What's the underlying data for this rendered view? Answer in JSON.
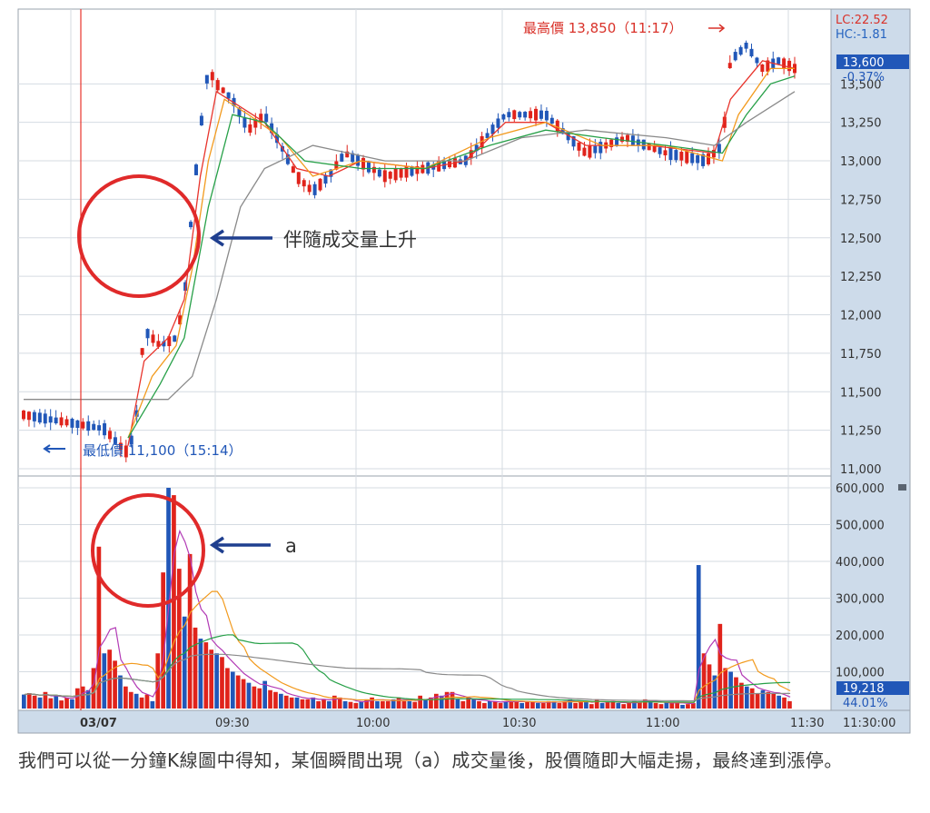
{
  "caption": "我們可以從一分鐘K線圖中得知，某個瞬間出現（a）成交量後，股價隨即大幅走揚，最終達到漲停。",
  "chart_data": [
    {
      "type": "candlestick",
      "date_label": "03/07",
      "x_ticks": [
        "09:30",
        "10:00",
        "10:30",
        "11:00",
        "11:30"
      ],
      "y_ticks": [
        "11,000",
        "11,250",
        "11,500",
        "11,750",
        "12,000",
        "12,250",
        "12,500",
        "12,750",
        "13,000",
        "13,250",
        "13,500"
      ],
      "ylim": [
        11000,
        13850
      ],
      "info": {
        "lc": "LC:22.52",
        "hc": "HC:-1.81",
        "price": "13,600",
        "change": "-0.37%"
      },
      "annotations": {
        "high": "最高價 13,850（11:17）",
        "low": "最低價 11,100（15:14）",
        "volume_rise": "伴隨成交量上升"
      },
      "series": [
        {
          "role": "price",
          "points": [
            [
              0,
              11350
            ],
            [
              10,
              11260
            ],
            [
              12,
              11150
            ],
            [
              13,
              11100
            ],
            [
              14,
              11300
            ],
            [
              15,
              11900
            ],
            [
              17,
              11800
            ],
            [
              19,
              11850
            ],
            [
              20,
              12100
            ],
            [
              21,
              12700
            ],
            [
              22,
              13200
            ],
            [
              23,
              13600
            ],
            [
              24,
              13500
            ],
            [
              25,
              13450
            ],
            [
              26,
              13400
            ],
            [
              28,
              13200
            ],
            [
              30,
              13300
            ],
            [
              32,
              13100
            ],
            [
              34,
              12900
            ],
            [
              36,
              12800
            ],
            [
              38,
              12900
            ],
            [
              40,
              13050
            ],
            [
              45,
              12900
            ],
            [
              50,
              12950
            ],
            [
              55,
              13000
            ],
            [
              60,
              13300
            ],
            [
              65,
              13300
            ],
            [
              70,
              13050
            ],
            [
              75,
              13150
            ],
            [
              80,
              13050
            ],
            [
              85,
              13000
            ],
            [
              87,
              13100
            ],
            [
              88,
              13650
            ],
            [
              90,
              13750
            ],
            [
              92,
              13600
            ],
            [
              94,
              13650
            ],
            [
              96,
              13600
            ]
          ]
        },
        {
          "role": "ma-short",
          "color": "#e8342c",
          "points": [
            [
              13,
              11150
            ],
            [
              15,
              11700
            ],
            [
              18,
              11850
            ],
            [
              20,
              12100
            ],
            [
              22,
              12900
            ],
            [
              24,
              13450
            ],
            [
              27,
              13350
            ],
            [
              30,
              13250
            ],
            [
              34,
              12950
            ],
            [
              38,
              12900
            ],
            [
              42,
              13000
            ],
            [
              50,
              12950
            ],
            [
              55,
              13000
            ],
            [
              60,
              13250
            ],
            [
              65,
              13250
            ],
            [
              70,
              13100
            ],
            [
              78,
              13100
            ],
            [
              86,
              13050
            ],
            [
              88,
              13400
            ],
            [
              92,
              13650
            ],
            [
              96,
              13600
            ]
          ]
        },
        {
          "role": "ma-mid",
          "color": "#f29a1d",
          "points": [
            [
              13,
              11200
            ],
            [
              16,
              11600
            ],
            [
              19,
              11800
            ],
            [
              21,
              12300
            ],
            [
              23,
              13000
            ],
            [
              25,
              13400
            ],
            [
              28,
              13300
            ],
            [
              32,
              13150
            ],
            [
              36,
              12900
            ],
            [
              42,
              13000
            ],
            [
              50,
              12950
            ],
            [
              58,
              13150
            ],
            [
              65,
              13250
            ],
            [
              72,
              13100
            ],
            [
              80,
              13100
            ],
            [
              87,
              13000
            ],
            [
              89,
              13300
            ],
            [
              93,
              13600
            ],
            [
              96,
              13600
            ]
          ]
        },
        {
          "role": "ma-long",
          "color": "#27a048",
          "points": [
            [
              13,
              11200
            ],
            [
              17,
              11550
            ],
            [
              20,
              11850
            ],
            [
              23,
              12700
            ],
            [
              26,
              13300
            ],
            [
              30,
              13250
            ],
            [
              35,
              13000
            ],
            [
              42,
              12950
            ],
            [
              50,
              12950
            ],
            [
              58,
              13100
            ],
            [
              65,
              13200
            ],
            [
              72,
              13150
            ],
            [
              80,
              13100
            ],
            [
              87,
              13050
            ],
            [
              90,
              13300
            ],
            [
              93,
              13500
            ],
            [
              96,
              13550
            ]
          ]
        },
        {
          "role": "ma-longest",
          "color": "#8a8a8a",
          "points": [
            [
              0,
              11450
            ],
            [
              14,
              11450
            ],
            [
              18,
              11450
            ],
            [
              21,
              11600
            ],
            [
              24,
              12100
            ],
            [
              27,
              12700
            ],
            [
              30,
              12950
            ],
            [
              36,
              13100
            ],
            [
              45,
              13000
            ],
            [
              55,
              13000
            ],
            [
              62,
              13150
            ],
            [
              70,
              13200
            ],
            [
              80,
              13150
            ],
            [
              86,
              13100
            ],
            [
              90,
              13250
            ],
            [
              96,
              13450
            ]
          ]
        }
      ],
      "y_label_right": ""
    },
    {
      "type": "bar",
      "y_ticks": [
        "600,000",
        "500,000",
        "400,000",
        "300,000",
        "200,000",
        "100,000"
      ],
      "ylim": [
        0,
        620000
      ],
      "info": {
        "volume": "19,218",
        "ratio": "44.01%"
      },
      "annotation": "a",
      "values": [
        38000,
        42000,
        35000,
        30000,
        45000,
        28000,
        35000,
        22000,
        30000,
        25000,
        55000,
        60000,
        50000,
        110000,
        440000,
        150000,
        160000,
        130000,
        90000,
        60000,
        45000,
        40000,
        30000,
        38000,
        20000,
        150000,
        370000,
        600000,
        580000,
        380000,
        250000,
        420000,
        220000,
        190000,
        180000,
        160000,
        150000,
        140000,
        110000,
        100000,
        90000,
        80000,
        70000,
        60000,
        55000,
        75000,
        50000,
        45000,
        40000,
        35000,
        30000,
        30000,
        25000,
        25000,
        30000,
        20000,
        25000,
        20000,
        35000,
        30000,
        20000,
        18000,
        15000,
        20000,
        25000,
        30000,
        20000,
        20000,
        20000,
        25000,
        30000,
        20000,
        20000,
        18000,
        35000,
        25000,
        30000,
        40000,
        35000,
        45000,
        45000,
        25000,
        20000,
        30000,
        25000,
        20000,
        15000,
        20000,
        20000,
        15000,
        20000,
        20000,
        20000,
        15000,
        20000,
        18000,
        15000,
        15000,
        20000,
        20000,
        15000,
        20000,
        25000,
        15000,
        20000,
        20000,
        12000,
        25000,
        15000,
        18000,
        20000,
        15000,
        12000,
        15000,
        20000,
        18000,
        25000,
        20000,
        15000,
        12000,
        18000,
        15000,
        18000,
        10000,
        12000,
        15000,
        390000,
        150000,
        120000,
        90000,
        230000,
        110000,
        100000,
        85000,
        70000,
        60000,
        55000,
        40000,
        50000,
        45000,
        40000,
        35000,
        30000,
        20000
      ]
    }
  ]
}
